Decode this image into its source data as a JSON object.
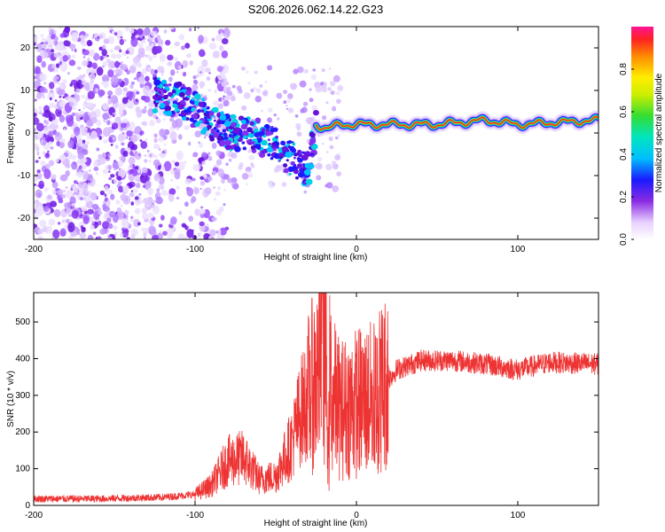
{
  "title": "S206.2026.062.14.22.G23",
  "chart_data": [
    {
      "type": "heatmap",
      "name": "spectrogram",
      "xlabel": "Height of straight line (km)",
      "ylabel": "Frequency (Hz)",
      "xlim": [
        -200,
        150
      ],
      "ylim": [
        -25,
        25
      ],
      "xticks": [
        -200,
        -100,
        0,
        100
      ],
      "yticks": [
        -20,
        -10,
        0,
        10,
        20
      ],
      "colorbar": {
        "label": "Normalized spectral amplitude",
        "range": [
          0,
          1
        ],
        "ticks": [
          0.0,
          0.2,
          0.4,
          0.6,
          0.8
        ],
        "tick_labels": [
          "0.0",
          "0.2",
          "0.4",
          "0.6",
          "0.8"
        ]
      },
      "signal_track": [
        {
          "x": -125,
          "f": 9
        },
        {
          "x": -110,
          "f": 8
        },
        {
          "x": -95,
          "f": 4
        },
        {
          "x": -80,
          "f": 0
        },
        {
          "x": -65,
          "f": 0
        },
        {
          "x": -50,
          "f": -3
        },
        {
          "x": -40,
          "f": -6
        },
        {
          "x": -30,
          "f": -9
        },
        {
          "x": -25,
          "f": 2
        },
        {
          "x": -18,
          "f": 1
        },
        {
          "x": -10,
          "f": 2
        },
        {
          "x": 0,
          "f": 2
        },
        {
          "x": 20,
          "f": 2
        },
        {
          "x": 50,
          "f": 2
        },
        {
          "x": 80,
          "f": 3
        },
        {
          "x": 100,
          "f": 2
        },
        {
          "x": 150,
          "f": 3
        }
      ],
      "noise_region_x": [
        -200,
        -90
      ]
    },
    {
      "type": "line",
      "name": "snr",
      "xlabel": "Height of straight line (km)",
      "ylabel": "SNR (10 * v/v)",
      "xlim": [
        -200,
        150
      ],
      "ylim": [
        0,
        580
      ],
      "xticks": [
        -200,
        -100,
        0,
        100
      ],
      "yticks": [
        0,
        100,
        200,
        300,
        400,
        500
      ],
      "color": "#ee3333",
      "series_envelope": [
        {
          "x": -200,
          "y": 18
        },
        {
          "x": -160,
          "y": 18
        },
        {
          "x": -120,
          "y": 22
        },
        {
          "x": -100,
          "y": 30
        },
        {
          "x": -90,
          "y": 55
        },
        {
          "x": -80,
          "y": 120
        },
        {
          "x": -70,
          "y": 130
        },
        {
          "x": -60,
          "y": 70
        },
        {
          "x": -50,
          "y": 80
        },
        {
          "x": -40,
          "y": 170
        },
        {
          "x": -35,
          "y": 250
        },
        {
          "x": -25,
          "y": 350
        },
        {
          "x": -20,
          "y": 420
        },
        {
          "x": -15,
          "y": 300
        },
        {
          "x": -10,
          "y": 260
        },
        {
          "x": 0,
          "y": 280
        },
        {
          "x": 10,
          "y": 290
        },
        {
          "x": 15,
          "y": 320
        },
        {
          "x": 25,
          "y": 370
        },
        {
          "x": 40,
          "y": 395
        },
        {
          "x": 60,
          "y": 395
        },
        {
          "x": 80,
          "y": 385
        },
        {
          "x": 100,
          "y": 370
        },
        {
          "x": 120,
          "y": 390
        },
        {
          "x": 150,
          "y": 385
        }
      ],
      "peak": {
        "x": -21,
        "y": 580
      }
    }
  ]
}
